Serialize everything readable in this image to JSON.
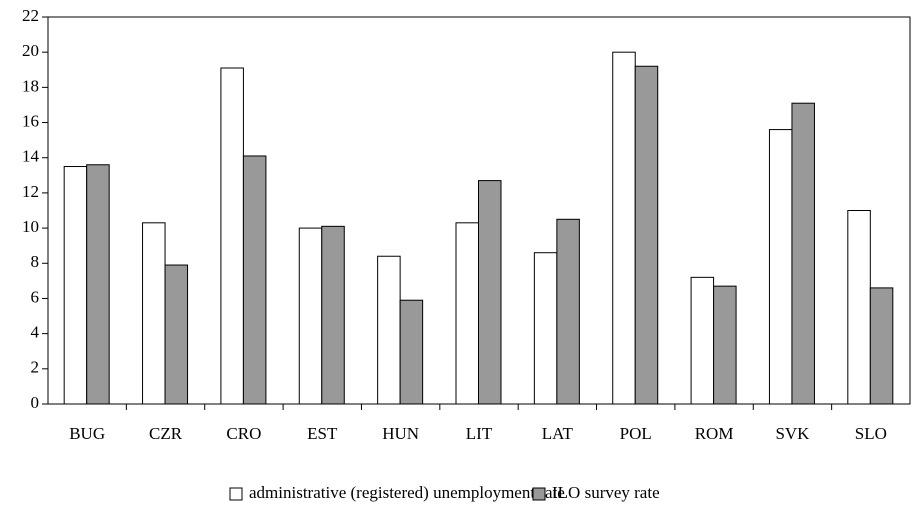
{
  "chart_data": {
    "type": "bar",
    "categories": [
      "BUG",
      "CZR",
      "CRO",
      "EST",
      "HUN",
      "LIT",
      "LAT",
      "POL",
      "ROM",
      "SVK",
      "SLO"
    ],
    "series": [
      {
        "name": "administrative (registered) unemployment rate",
        "color": "#ffffff",
        "values": [
          13.5,
          10.3,
          19.1,
          10.0,
          8.4,
          10.3,
          8.6,
          20.0,
          7.2,
          15.6,
          11.0
        ]
      },
      {
        "name": "ILO survey rate",
        "color": "#999999",
        "values": [
          13.6,
          7.9,
          14.1,
          10.1,
          5.9,
          12.7,
          10.5,
          19.2,
          6.7,
          17.1,
          6.6
        ]
      }
    ],
    "ylim": [
      0,
      22
    ],
    "yticks": [
      0,
      2,
      4,
      6,
      8,
      10,
      12,
      14,
      16,
      18,
      20,
      22
    ],
    "legend": "bottom"
  }
}
